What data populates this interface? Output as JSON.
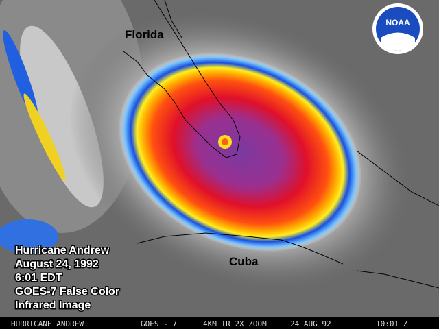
{
  "labels": {
    "florida": "Florida",
    "cuba": "Cuba"
  },
  "logo": "NOAA",
  "caption": [
    "Hurricane Andrew",
    "August 24, 1992",
    "6:01 EDT",
    "GOES-7 False Color",
    "Infrared Image"
  ],
  "footer": [
    "HURRICANE ANDREW",
    "GOES - 7",
    "4KM IR 2X ZOOM",
    "24 AUG 92",
    "10:01 Z"
  ]
}
